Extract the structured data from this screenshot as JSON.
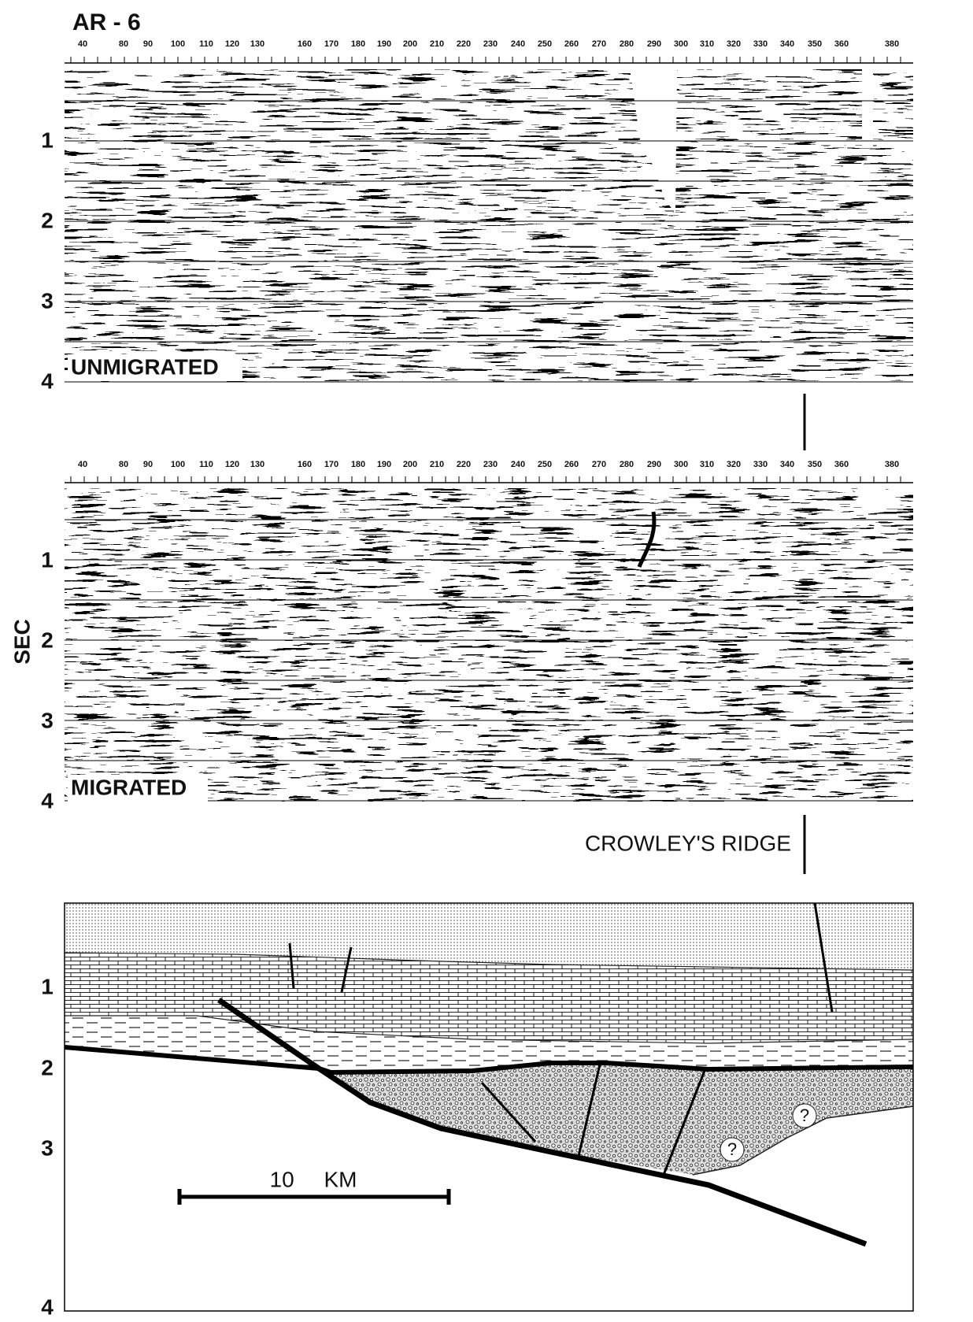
{
  "header": {
    "title": "AR - 6"
  },
  "shotpoints": [
    40,
    80,
    90,
    100,
    110,
    120,
    130,
    160,
    170,
    180,
    190,
    200,
    210,
    220,
    230,
    240,
    250,
    260,
    270,
    280,
    290,
    300,
    310,
    320,
    330,
    340,
    350,
    360,
    380
  ],
  "panels": [
    {
      "label": "UNMIGRATED",
      "times": [
        1,
        2,
        3,
        4
      ]
    },
    {
      "label": "MIGRATED",
      "times": [
        1,
        2,
        3,
        4
      ]
    }
  ],
  "axis_label": "SEC",
  "annotation": "CROWLEY'S RIDGE",
  "section": {
    "times": [
      1,
      2,
      3,
      4
    ],
    "scale_bar": "10 KM",
    "unknowns": [
      "?",
      "?"
    ]
  }
}
